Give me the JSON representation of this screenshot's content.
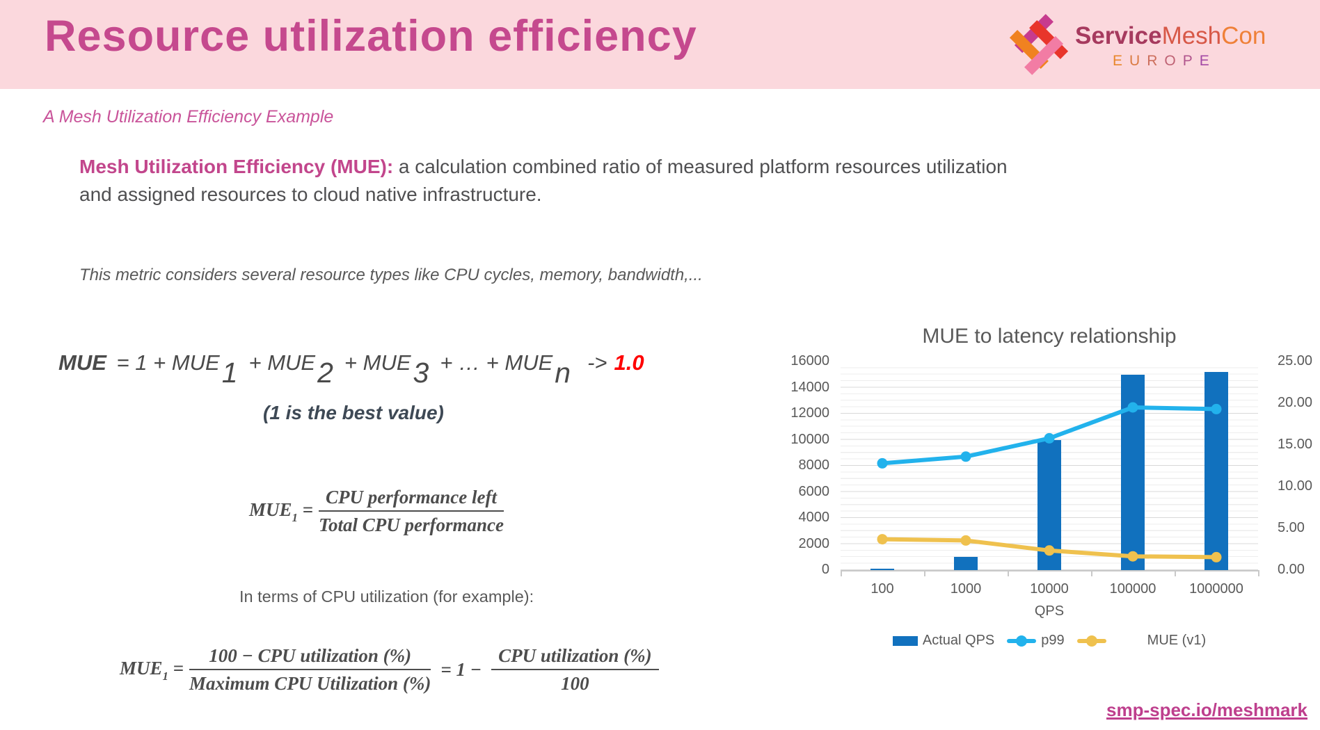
{
  "header": {
    "title": "Resource utilization efficiency",
    "brand": {
      "service": "Service",
      "mesh": "Mesh",
      "con": "Con",
      "region": "EUROPE",
      "logo_name": "servicemeshcon-weave-logo",
      "logo_colors": [
        "#C73B8E",
        "#F08220",
        "#E8352B",
        "#F27CA4"
      ],
      "region_gradient": [
        "#E8872B",
        "#A349A5"
      ]
    }
  },
  "subtitle": "A Mesh Utilization Efficiency Example",
  "definition": {
    "lead": "Mesh Utilization Efficiency (MUE):",
    "rest": " a calculation combined ratio of measured platform resources utilization and assigned resources to cloud native infrastructure."
  },
  "metric_note": "This metric considers several resource types like CPU cycles, memory, bandwidth,...",
  "formula_sum": {
    "lead": "MUE",
    "terms": [
      {
        "t": " = 1 + MUE",
        "sub": "1"
      },
      {
        "t": "+ MUE",
        "sub": "2"
      },
      {
        "t": "+ MUE",
        "sub": "3"
      },
      {
        "t": "+ … + MUE",
        "sub": "n"
      }
    ],
    "arrow": "->",
    "target": "1.0",
    "caption": "(1 is the best value)"
  },
  "formula_mue1": {
    "lhs": "MUE",
    "lhs_sub": "1",
    "eq": "=",
    "numerator": "CPU performance left",
    "denominator": "Total CPU performance"
  },
  "cpu_note": "In terms of CPU utilization (for example):",
  "formula_cpu": {
    "lhs": "MUE",
    "lhs_sub": "1",
    "eq": "=",
    "num1": "100 − CPU utilization (%)",
    "den1": "Maximum CPU Utilization (%)",
    "mid": "= 1 −",
    "num2": "CPU utilization (%)",
    "den2": "100"
  },
  "chart_data": {
    "type": "combo-bar-line",
    "title": "MUE to latency relationship",
    "xlabel": "QPS",
    "categories": [
      "100",
      "1000",
      "10000",
      "100000",
      "1000000"
    ],
    "left_axis": {
      "min": 0,
      "max": 16000,
      "ticks": [
        "16000",
        "14000",
        "12000",
        "10000",
        "8000",
        "6000",
        "4000",
        "2000",
        "0"
      ]
    },
    "right_axis": {
      "min": 0,
      "max": 25,
      "ticks": [
        "25.00",
        "20.00",
        "15.00",
        "10.00",
        "5.00",
        "0.00"
      ]
    },
    "grid": {
      "major_step": 2000,
      "minor_step": 500
    },
    "legend_position": "bottom",
    "series": [
      {
        "name": "Actual QPS",
        "type": "bar",
        "axis": "left",
        "color": "#1171BE",
        "values": [
          100,
          1000,
          10000,
          15000,
          15200
        ]
      },
      {
        "name": "p99",
        "type": "line",
        "axis": "right",
        "color": "#22B2EC",
        "values": [
          12.8,
          13.6,
          15.8,
          19.5,
          19.3
        ]
      },
      {
        "name": "MUE (v1)",
        "type": "line",
        "axis": "right",
        "color": "#EFC14E",
        "values": [
          3.7,
          3.55,
          2.35,
          1.65,
          1.55
        ]
      }
    ]
  },
  "footer_link": "smp-spec.io/meshmark",
  "colors": {
    "header_bg": "#FBD8DD",
    "title_pink": "#C5498E",
    "accent_pink": "#C2468C",
    "body_gray": "#4F4F51",
    "red": "#FF0000",
    "bar_blue": "#1171BE",
    "line_cyan": "#22B2EC",
    "line_yellow": "#EFC14E",
    "link_pink": "#BE3F8D"
  }
}
